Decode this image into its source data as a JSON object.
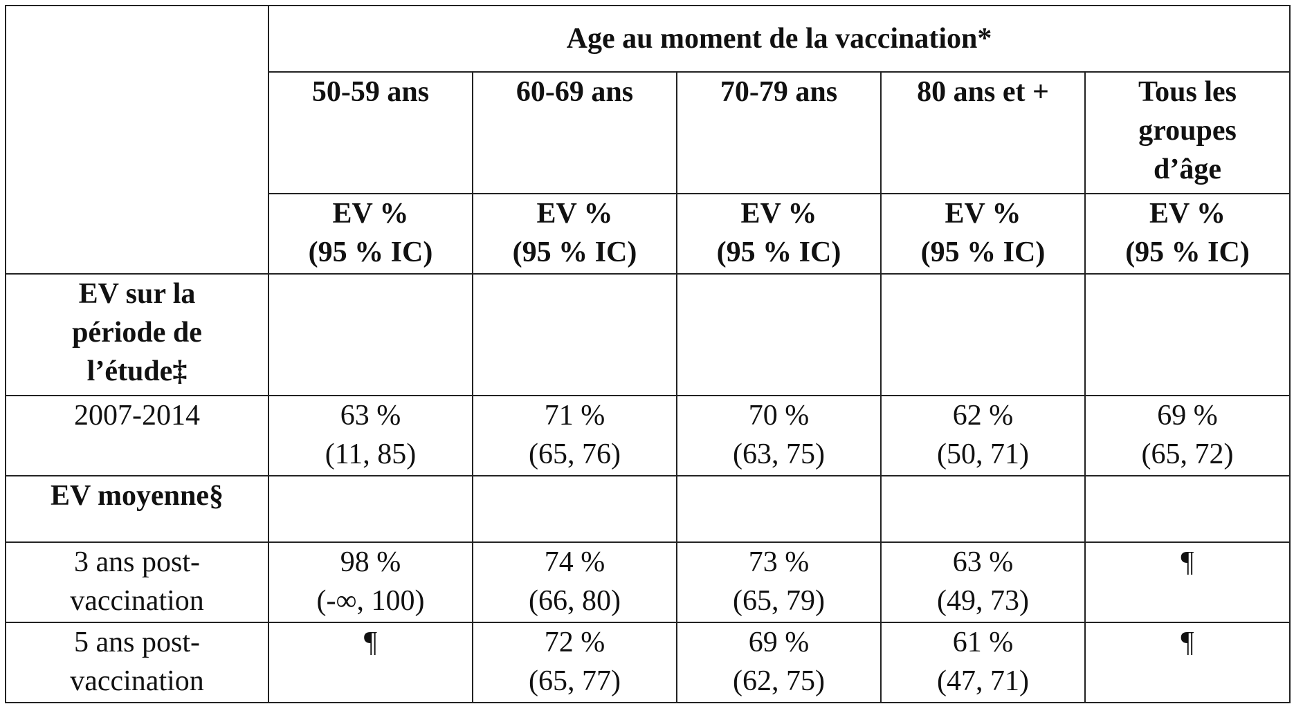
{
  "table": {
    "spanning_header": "Age au moment de la vaccination*",
    "age_groups": [
      [
        "50-59 ans"
      ],
      [
        "60-69 ans"
      ],
      [
        "70-79 ans"
      ],
      [
        "80 ans et +"
      ],
      [
        "Tous les",
        "groupes",
        "d’âge"
      ]
    ],
    "ev_header": {
      "line1": "EV %",
      "line2": "(95 % IC)"
    },
    "section_study": [
      "EV sur la",
      "période de",
      "l’étude‡"
    ],
    "row_2007": {
      "label": "2007-2014",
      "cells": [
        {
          "pct": "63 %",
          "ci": "(11, 85)"
        },
        {
          "pct": "71 %",
          "ci": "(65, 76)"
        },
        {
          "pct": "70 %",
          "ci": "(63, 75)"
        },
        {
          "pct": "62 %",
          "ci": "(50, 71)"
        },
        {
          "pct": "69 %",
          "ci": "(65, 72)"
        }
      ]
    },
    "section_mean": "EV moyenne§",
    "row_3ans": {
      "label": [
        "3 ans post-",
        "vaccination"
      ],
      "cells": [
        {
          "pct": "98 %",
          "ci": "(-∞, 100)"
        },
        {
          "pct": "74 %",
          "ci": "(66, 80)"
        },
        {
          "pct": "73 %",
          "ci": "(65, 79)"
        },
        {
          "pct": "63 %",
          "ci": "(49, 73)"
        },
        {
          "pct": "¶",
          "ci": ""
        }
      ]
    },
    "row_5ans": {
      "label": [
        "5 ans post-",
        "vaccination"
      ],
      "cells": [
        {
          "pct": "¶",
          "ci": ""
        },
        {
          "pct": "72 %",
          "ci": "(65, 77)"
        },
        {
          "pct": "69 %",
          "ci": "(62, 75)"
        },
        {
          "pct": "61 %",
          "ci": "(47, 71)"
        },
        {
          "pct": "¶",
          "ci": ""
        }
      ]
    }
  }
}
